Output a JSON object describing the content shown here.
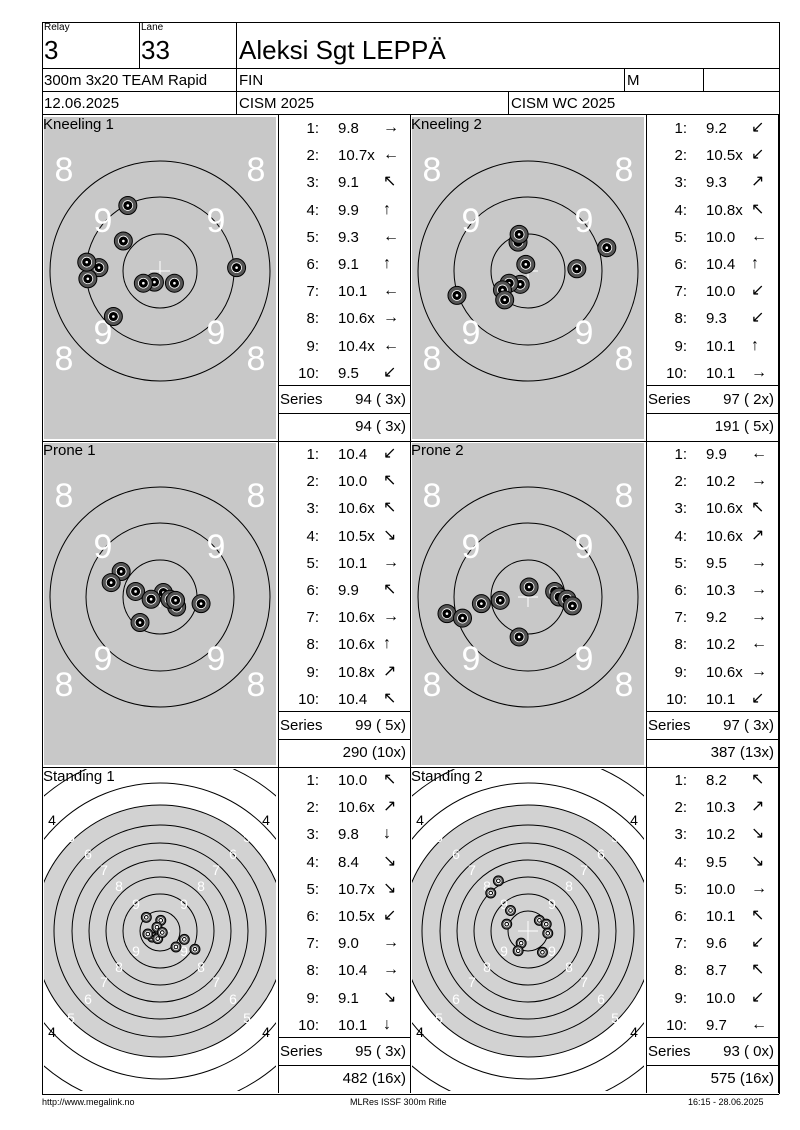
{
  "header": {
    "relay_label": "Relay",
    "relay": "3",
    "lane_label": "Lane",
    "lane": "33",
    "name": "Aleksi Sgt LEPPÄ",
    "event": "300m 3x20 TEAM Rapid",
    "nation": "FIN",
    "gender": "M",
    "date": "12.06.2025",
    "competition": "CISM 2025",
    "match": "CISM WC 2025"
  },
  "series_label": "Series",
  "panels": [
    {
      "title": "Kneeling 1",
      "target": "prone",
      "series": "94 ( 3x)",
      "cumulative": "94 ( 3x)",
      "shots": [
        {
          "n": "1:",
          "v": "9.8",
          "d": "→"
        },
        {
          "n": "2:",
          "v": "10.7x",
          "d": "←"
        },
        {
          "n": "3:",
          "v": "9.1",
          "d": "↖"
        },
        {
          "n": "4:",
          "v": "9.9",
          "d": "↑"
        },
        {
          "n": "5:",
          "v": "9.3",
          "d": "←"
        },
        {
          "n": "6:",
          "v": "9.1",
          "d": "↑"
        },
        {
          "n": "7:",
          "v": "10.1",
          "d": "←"
        },
        {
          "n": "8:",
          "v": "10.6x",
          "d": "→"
        },
        {
          "n": "9:",
          "v": "10.4x",
          "d": "←"
        },
        {
          "n": "10:",
          "v": "9.5",
          "d": "↙"
        }
      ],
      "holes": [
        [
          -2.9,
          -5.9
        ],
        [
          -3.3,
          -2.7
        ],
        [
          -5.5,
          -0.3
        ],
        [
          -0.5,
          1.0
        ],
        [
          1.3,
          1.1
        ],
        [
          -1.5,
          1.1
        ],
        [
          -6.5,
          0.7
        ],
        [
          -6.6,
          -0.8
        ],
        [
          6.9,
          -0.3
        ],
        [
          -4.2,
          4.1
        ]
      ]
    },
    {
      "title": "Kneeling 2",
      "target": "prone",
      "series": "97 ( 2x)",
      "cumulative": "191 ( 5x)",
      "shots": [
        {
          "n": "1:",
          "v": "9.2",
          "d": "↙"
        },
        {
          "n": "2:",
          "v": "10.5x",
          "d": "↙"
        },
        {
          "n": "3:",
          "v": "9.3",
          "d": "↗"
        },
        {
          "n": "4:",
          "v": "10.8x",
          "d": "↖"
        },
        {
          "n": "5:",
          "v": "10.0",
          "d": "←"
        },
        {
          "n": "6:",
          "v": "10.4",
          "d": "↑"
        },
        {
          "n": "7:",
          "v": "10.0",
          "d": "↙"
        },
        {
          "n": "8:",
          "v": "9.3",
          "d": "↙"
        },
        {
          "n": "9:",
          "v": "10.1",
          "d": "↑"
        },
        {
          "n": "10:",
          "v": "10.1",
          "d": "→"
        }
      ],
      "holes": [
        [
          -0.9,
          -2.6
        ],
        [
          -0.8,
          -3.3
        ],
        [
          4.4,
          -0.2
        ],
        [
          -0.2,
          -0.6
        ],
        [
          -0.7,
          1.2
        ],
        [
          -1.7,
          1.1
        ],
        [
          -2.3,
          1.7
        ],
        [
          -2.1,
          2.6
        ],
        [
          -6.4,
          2.2
        ],
        [
          7.1,
          -2.1
        ]
      ]
    },
    {
      "title": "Prone 1",
      "target": "prone",
      "series": "99 ( 5x)",
      "cumulative": "290 (10x)",
      "shots": [
        {
          "n": "1:",
          "v": "10.4",
          "d": "↙"
        },
        {
          "n": "2:",
          "v": "10.0",
          "d": "↖"
        },
        {
          "n": "3:",
          "v": "10.6x",
          "d": "↖"
        },
        {
          "n": "4:",
          "v": "10.5x",
          "d": "↘"
        },
        {
          "n": "5:",
          "v": "10.1",
          "d": "→"
        },
        {
          "n": "6:",
          "v": "9.9",
          "d": "↖"
        },
        {
          "n": "7:",
          "v": "10.6x",
          "d": "→"
        },
        {
          "n": "8:",
          "v": "10.6x",
          "d": "↑"
        },
        {
          "n": "9:",
          "v": "10.8x",
          "d": "↗"
        },
        {
          "n": "10:",
          "v": "10.4",
          "d": "↖"
        }
      ],
      "holes": [
        [
          -1.8,
          2.3
        ],
        [
          -3.5,
          -2.3
        ],
        [
          -2.2,
          -0.5
        ],
        [
          1.5,
          0.9
        ],
        [
          3.7,
          0.6
        ],
        [
          -4.4,
          -1.3
        ],
        [
          0.3,
          -0.4
        ],
        [
          0.9,
          0.2
        ],
        [
          1.4,
          0.3
        ],
        [
          -0.8,
          0.2
        ]
      ]
    },
    {
      "title": "Prone 2",
      "target": "prone",
      "series": "97 ( 3x)",
      "cumulative": "387 (13x)",
      "shots": [
        {
          "n": "1:",
          "v": "9.9",
          "d": "←"
        },
        {
          "n": "2:",
          "v": "10.2",
          "d": "→"
        },
        {
          "n": "3:",
          "v": "10.6x",
          "d": "↖"
        },
        {
          "n": "4:",
          "v": "10.6x",
          "d": "↗"
        },
        {
          "n": "5:",
          "v": "9.5",
          "d": "→"
        },
        {
          "n": "6:",
          "v": "10.3",
          "d": "→"
        },
        {
          "n": "7:",
          "v": "9.2",
          "d": "→"
        },
        {
          "n": "8:",
          "v": "10.2",
          "d": "←"
        },
        {
          "n": "9:",
          "v": "10.6x",
          "d": "→"
        },
        {
          "n": "10:",
          "v": "10.1",
          "d": "↙"
        }
      ],
      "holes": [
        [
          -4.2,
          0.6
        ],
        [
          -2.5,
          0.3
        ],
        [
          2.4,
          -0.5
        ],
        [
          2.8,
          0.0
        ],
        [
          3.5,
          0.2
        ],
        [
          4.0,
          0.8
        ],
        [
          -7.3,
          1.5
        ],
        [
          -5.9,
          1.9
        ],
        [
          -0.8,
          3.6
        ],
        [
          0.1,
          -0.9
        ]
      ]
    },
    {
      "title": "Standing 1",
      "target": "standing",
      "series": "95 ( 3x)",
      "cumulative": "482 (16x)",
      "shots": [
        {
          "n": "1:",
          "v": "10.0",
          "d": "↖"
        },
        {
          "n": "2:",
          "v": "10.6x",
          "d": "↗"
        },
        {
          "n": "3:",
          "v": "9.8",
          "d": "↓"
        },
        {
          "n": "4:",
          "v": "8.4",
          "d": "↘"
        },
        {
          "n": "5:",
          "v": "10.7x",
          "d": "↘"
        },
        {
          "n": "6:",
          "v": "10.5x",
          "d": "↙"
        },
        {
          "n": "7:",
          "v": "9.0",
          "d": "→"
        },
        {
          "n": "8:",
          "v": "10.4",
          "d": "→"
        },
        {
          "n": "9:",
          "v": "9.1",
          "d": "↘"
        },
        {
          "n": "10:",
          "v": "10.1",
          "d": "↓"
        }
      ],
      "holes": [
        [
          -1.8,
          -1.8
        ],
        [
          0.1,
          -1.4
        ],
        [
          -0.4,
          -0.5
        ],
        [
          -1.0,
          0.8
        ],
        [
          -0.3,
          1.0
        ],
        [
          -1.6,
          0.4
        ],
        [
          0.3,
          0.2
        ],
        [
          3.2,
          1.1
        ],
        [
          2.1,
          2.1
        ],
        [
          4.6,
          2.4
        ]
      ]
    },
    {
      "title": "Standing 2",
      "target": "standing",
      "series": "93 ( 0x)",
      "cumulative": "575 (16x)",
      "shots": [
        {
          "n": "1:",
          "v": "8.2",
          "d": "↖"
        },
        {
          "n": "2:",
          "v": "10.3",
          "d": "↗"
        },
        {
          "n": "3:",
          "v": "10.2",
          "d": "↘"
        },
        {
          "n": "4:",
          "v": "9.5",
          "d": "↘"
        },
        {
          "n": "5:",
          "v": "10.0",
          "d": "→"
        },
        {
          "n": "6:",
          "v": "10.1",
          "d": "↖"
        },
        {
          "n": "7:",
          "v": "9.6",
          "d": "↙"
        },
        {
          "n": "8:",
          "v": "8.7",
          "d": "↖"
        },
        {
          "n": "9:",
          "v": "10.0",
          "d": "↙"
        },
        {
          "n": "10:",
          "v": "9.7",
          "d": "←"
        }
      ],
      "holes": [
        [
          -3.9,
          -6.6
        ],
        [
          -4.9,
          -5.0
        ],
        [
          -2.3,
          -2.7
        ],
        [
          1.5,
          -1.4
        ],
        [
          -2.8,
          -0.9
        ],
        [
          2.4,
          -0.9
        ],
        [
          2.6,
          0.3
        ],
        [
          -0.9,
          1.6
        ],
        [
          -1.3,
          2.6
        ],
        [
          1.9,
          2.8
        ]
      ]
    }
  ],
  "footer": {
    "url": "http://www.megalink.no",
    "program": "MLRes ISSF 300m Rifle",
    "timestamp": "16:15 - 28.06.2025"
  },
  "colors": {
    "target_gray": "#c8c8c8",
    "target_light": "#d2d2d2",
    "ring": "#000000",
    "ring_label": "#ffffff"
  }
}
